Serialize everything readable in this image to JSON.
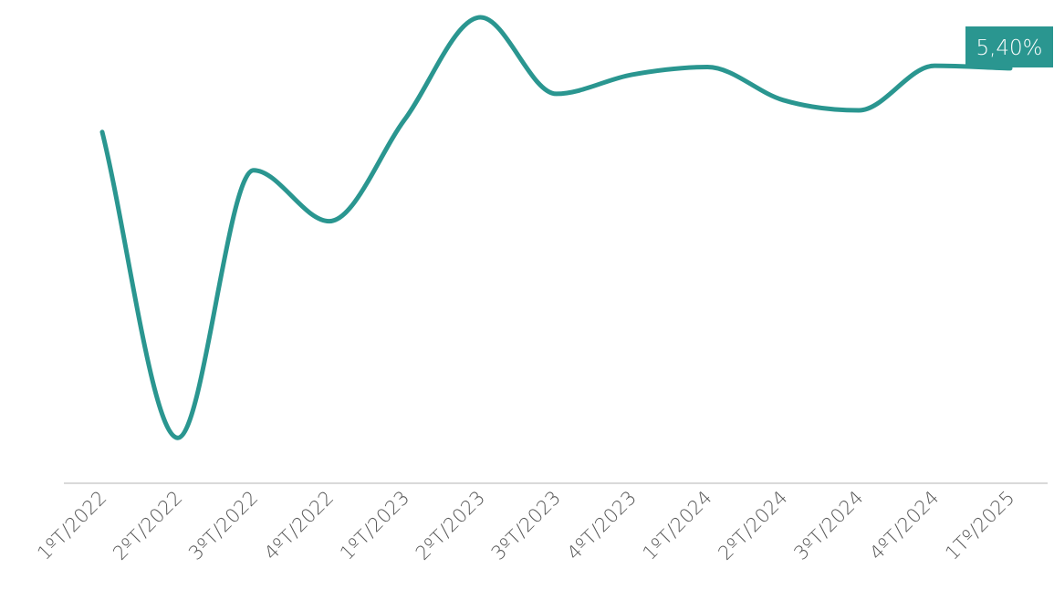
{
  "chart_data": {
    "type": "line",
    "title": "",
    "xlabel": "",
    "ylabel": "",
    "categories": [
      "1ºT/2022",
      "2ºT/2022",
      "3ºT/2022",
      "4ºT/2022",
      "1ºT/2023",
      "2ºT/2023",
      "3ºT/2023",
      "4ºT/2023",
      "1ºT/2024",
      "2ºT/2024",
      "3ºT/2024",
      "4ºT/2024",
      "1Tº/2025"
    ],
    "series": [
      {
        "values": [
          4.9,
          2.5,
          4.6,
          4.2,
          5.0,
          5.8,
          5.2,
          5.35,
          5.41,
          5.15,
          5.07,
          5.42,
          5.4
        ],
        "color": "#2a9690"
      }
    ],
    "ylim": [
      2.38,
      5.85
    ],
    "grid": false,
    "axis_line_color": "#d9d9d9",
    "last_value_label": "5,40%",
    "label_bg_color": "#2a9690"
  }
}
